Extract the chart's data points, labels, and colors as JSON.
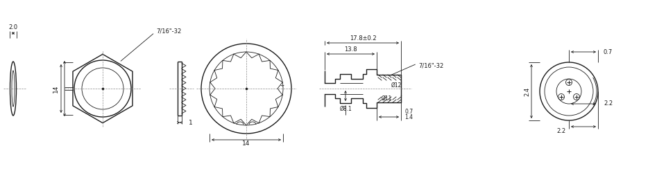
{
  "bg_color": "#ffffff",
  "line_color": "#1a1a1a",
  "dim_color": "#1a1a1a",
  "centerline_color": "#888888",
  "lw_main": 1.0,
  "lw_thin": 0.6,
  "lw_dim": 0.6,
  "annotations": {
    "dim_2": "2.0",
    "dim_14_left": "14",
    "dim_1": "1",
    "dim_14_top": "14",
    "dim_8_1": "Ø8.1",
    "dim_11": "Ø11",
    "dim_12": "Ø12",
    "dim_1_4": "1.4",
    "dim_0_7a": "0.7",
    "dim_13_8": "13.8",
    "dim_17_8": "17.8±0.2",
    "dim_thread_1": "7/16\"-32",
    "dim_thread_2": "7/16\"-32",
    "dim_2_2a": "2.2",
    "dim_2_2b": "2.2",
    "dim_2_4": "2.4",
    "dim_0_7b": "0.7"
  }
}
